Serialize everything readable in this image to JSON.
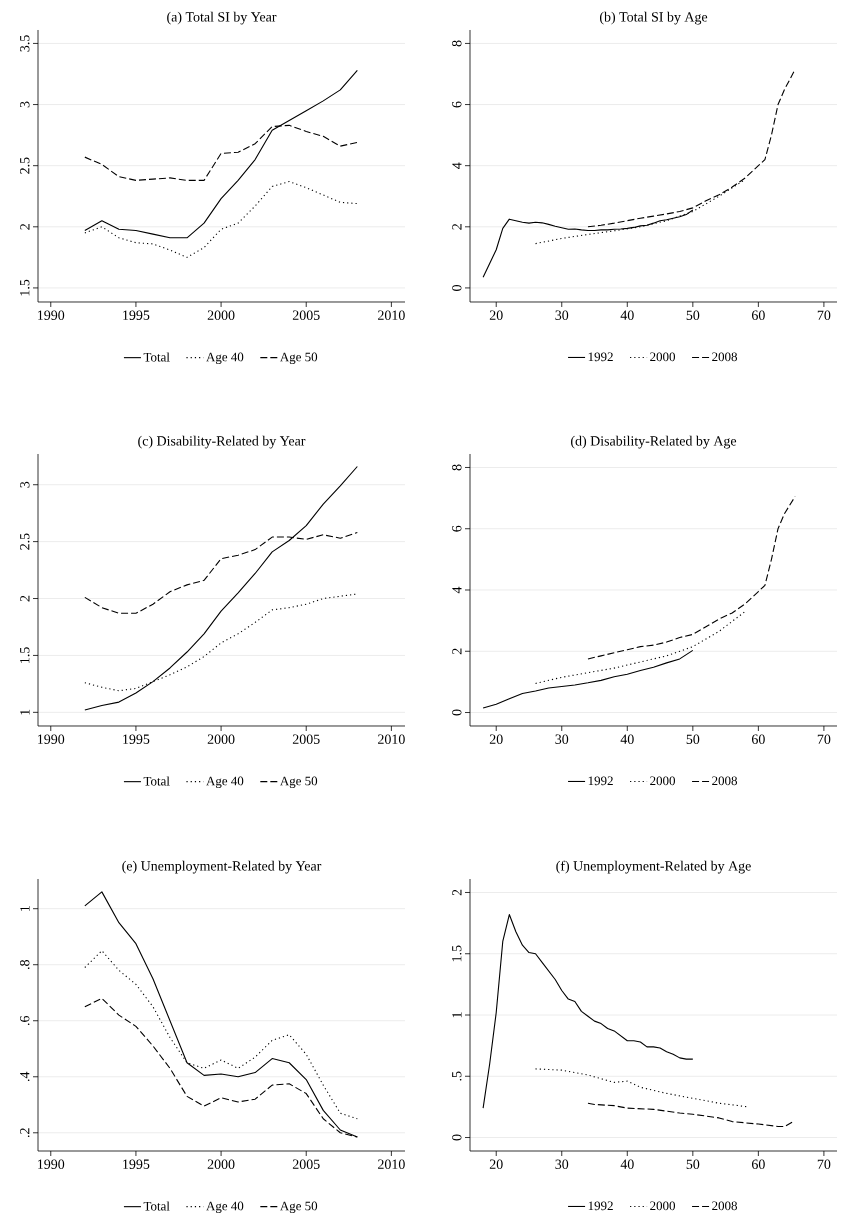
{
  "chart_data": [
    {
      "type": "line",
      "title": "(a) Total SI by Year",
      "xlim": [
        1989.25,
        2010.8
      ],
      "ylim": [
        1.385,
        3.61
      ],
      "xticks": [
        1990,
        1995,
        2000,
        2005,
        2010
      ],
      "yticks": [
        1.5,
        2,
        2.5,
        3,
        3.5
      ],
      "grid": "y",
      "legend": "bottom",
      "series": [
        {
          "name": "Total",
          "color": "#000000",
          "line_style": "solid",
          "x": [
            1992,
            1993,
            1994,
            1995,
            1996,
            1997,
            1998,
            1999,
            2000,
            2001,
            2002,
            2003,
            2004,
            2005,
            2006,
            2007,
            2008
          ],
          "values": [
            1.97,
            2.05,
            1.98,
            1.97,
            1.94,
            1.91,
            1.91,
            2.03,
            2.23,
            2.38,
            2.55,
            2.79,
            2.87,
            2.95,
            3.03,
            3.12,
            3.28
          ]
        },
        {
          "name": "Age 40",
          "color": "#000000",
          "line_style": "dotted",
          "x": [
            1992,
            1993,
            1994,
            1995,
            1996,
            1997,
            1998,
            1999,
            2000,
            2001,
            2002,
            2003,
            2004,
            2005,
            2006,
            2007,
            2008
          ],
          "values": [
            1.95,
            2.0,
            1.91,
            1.87,
            1.86,
            1.81,
            1.75,
            1.83,
            1.98,
            2.03,
            2.17,
            2.33,
            2.37,
            2.32,
            2.26,
            2.2,
            2.19
          ]
        },
        {
          "name": "Age 50",
          "color": "#000000",
          "line_style": "dashed",
          "x": [
            1992,
            1993,
            1994,
            1995,
            1996,
            1997,
            1998,
            1999,
            2000,
            2001,
            2002,
            2003,
            2004,
            2005,
            2006,
            2007,
            2008
          ],
          "values": [
            2.57,
            2.51,
            2.41,
            2.38,
            2.39,
            2.4,
            2.38,
            2.38,
            2.6,
            2.61,
            2.68,
            2.82,
            2.83,
            2.78,
            2.74,
            2.66,
            2.69
          ]
        }
      ]
    },
    {
      "type": "line",
      "title": "(b) Total SI by Age",
      "xlim": [
        16,
        72
      ],
      "ylim": [
        -0.46,
        8.44
      ],
      "xticks": [
        20,
        30,
        40,
        50,
        60,
        70
      ],
      "yticks": [
        0,
        2,
        4,
        6,
        8
      ],
      "grid": "y",
      "legend": "bottom",
      "series": [
        {
          "name": "1992",
          "color": "#000000",
          "line_style": "solid",
          "x": [
            18,
            19,
            20,
            21,
            22,
            23,
            24,
            25,
            26,
            27,
            28,
            29,
            30,
            31,
            32,
            33,
            34,
            35,
            36,
            37,
            38,
            39,
            40,
            41,
            42,
            43,
            44,
            45,
            46,
            47,
            48,
            49,
            50
          ],
          "values": [
            0.35,
            0.8,
            1.25,
            1.95,
            2.25,
            2.2,
            2.15,
            2.12,
            2.15,
            2.13,
            2.08,
            2.02,
            1.97,
            1.92,
            1.93,
            1.9,
            1.88,
            1.88,
            1.9,
            1.9,
            1.92,
            1.93,
            1.95,
            1.98,
            2.03,
            2.05,
            2.12,
            2.2,
            2.23,
            2.28,
            2.33,
            2.4,
            2.55
          ]
        },
        {
          "name": "2000",
          "color": "#000000",
          "line_style": "dotted",
          "x": [
            26,
            30,
            34,
            38,
            42,
            46,
            50,
            54,
            58
          ],
          "values": [
            1.45,
            1.62,
            1.75,
            1.87,
            2.0,
            2.2,
            2.5,
            3.0,
            3.55
          ]
        },
        {
          "name": "2008",
          "color": "#000000",
          "line_style": "dashed",
          "x": [
            34,
            36,
            38,
            40,
            42,
            44,
            46,
            48,
            50,
            52,
            54,
            56,
            58,
            60,
            61,
            62,
            63,
            64,
            65,
            65.6
          ],
          "values": [
            2.0,
            2.05,
            2.12,
            2.2,
            2.28,
            2.35,
            2.42,
            2.5,
            2.62,
            2.85,
            3.05,
            3.3,
            3.6,
            4.0,
            4.2,
            5.0,
            6.0,
            6.5,
            6.9,
            7.15
          ]
        }
      ]
    },
    {
      "type": "line",
      "title": "(c) Disability-Related by Year",
      "xlim": [
        1989.25,
        2010.8
      ],
      "ylim": [
        0.88,
        3.27
      ],
      "xticks": [
        1990,
        1995,
        2000,
        2005,
        2010
      ],
      "yticks": [
        1,
        1.5,
        2,
        2.5,
        3
      ],
      "grid": "y",
      "legend": "bottom",
      "series": [
        {
          "name": "Total",
          "color": "#000000",
          "line_style": "solid",
          "x": [
            1992,
            1993,
            1994,
            1995,
            1996,
            1997,
            1998,
            1999,
            2000,
            2001,
            2002,
            2003,
            2004,
            2005,
            2006,
            2007,
            2008
          ],
          "values": [
            1.02,
            1.06,
            1.09,
            1.17,
            1.27,
            1.39,
            1.53,
            1.69,
            1.89,
            2.05,
            2.22,
            2.41,
            2.51,
            2.64,
            2.83,
            2.99,
            3.16
          ]
        },
        {
          "name": "Age 40",
          "color": "#000000",
          "line_style": "dotted",
          "x": [
            1992,
            1993,
            1994,
            1995,
            1996,
            1997,
            1998,
            1999,
            2000,
            2001,
            2002,
            2003,
            2004,
            2005,
            2006,
            2007,
            2008
          ],
          "values": [
            1.26,
            1.22,
            1.19,
            1.21,
            1.27,
            1.33,
            1.4,
            1.49,
            1.61,
            1.69,
            1.79,
            1.9,
            1.92,
            1.95,
            2.0,
            2.02,
            2.04
          ]
        },
        {
          "name": "Age 50",
          "color": "#000000",
          "line_style": "dashed",
          "x": [
            1992,
            1993,
            1994,
            1995,
            1996,
            1997,
            1998,
            1999,
            2000,
            2001,
            2002,
            2003,
            2004,
            2005,
            2006,
            2007,
            2008
          ],
          "values": [
            2.01,
            1.92,
            1.87,
            1.87,
            1.95,
            2.06,
            2.12,
            2.16,
            2.35,
            2.38,
            2.43,
            2.54,
            2.54,
            2.52,
            2.56,
            2.53,
            2.58
          ]
        }
      ]
    },
    {
      "type": "line",
      "title": "(d) Disability-Related by Age",
      "xlim": [
        16,
        72
      ],
      "ylim": [
        -0.44,
        8.44
      ],
      "xticks": [
        20,
        30,
        40,
        50,
        60,
        70
      ],
      "yticks": [
        0,
        2,
        4,
        6,
        8
      ],
      "grid": "y",
      "legend": "bottom",
      "series": [
        {
          "name": "1992",
          "color": "#000000",
          "line_style": "solid",
          "x": [
            18,
            20,
            22,
            24,
            26,
            28,
            30,
            32,
            34,
            36,
            38,
            40,
            42,
            44,
            46,
            48,
            50
          ],
          "values": [
            0.15,
            0.27,
            0.45,
            0.62,
            0.7,
            0.8,
            0.85,
            0.9,
            0.97,
            1.05,
            1.17,
            1.25,
            1.37,
            1.48,
            1.62,
            1.75,
            2.03
          ]
        },
        {
          "name": "2000",
          "color": "#000000",
          "line_style": "dotted",
          "x": [
            26,
            30,
            34,
            38,
            42,
            46,
            50,
            54,
            58
          ],
          "values": [
            0.95,
            1.15,
            1.3,
            1.45,
            1.65,
            1.85,
            2.15,
            2.65,
            3.3
          ]
        },
        {
          "name": "2008",
          "color": "#000000",
          "line_style": "dashed",
          "x": [
            34,
            36,
            38,
            40,
            42,
            44,
            46,
            48,
            50,
            52,
            54,
            56,
            58,
            60,
            61,
            62,
            63,
            64,
            65.6
          ],
          "values": [
            1.75,
            1.85,
            1.95,
            2.05,
            2.15,
            2.2,
            2.3,
            2.45,
            2.55,
            2.8,
            3.05,
            3.25,
            3.55,
            3.95,
            4.15,
            5.0,
            6.0,
            6.5,
            7.05
          ]
        }
      ]
    },
    {
      "type": "line",
      "title": "(e) Unemployment-Related by Year",
      "xlim": [
        1989.25,
        2010.8
      ],
      "ylim": [
        0.135,
        1.106
      ],
      "xticks": [
        1990,
        1995,
        2000,
        2005,
        2010
      ],
      "yticks": [
        {
          "value": 0.2,
          "label": ".2"
        },
        {
          "value": 0.4,
          "label": ".4"
        },
        {
          "value": 0.6,
          "label": ".6"
        },
        {
          "value": 0.8,
          "label": ".8"
        },
        1
      ],
      "grid": "y",
      "legend": "bottom",
      "series": [
        {
          "name": "Total",
          "color": "#000000",
          "line_style": "solid",
          "x": [
            1992,
            1993,
            1994,
            1995,
            1996,
            1997,
            1998,
            1999,
            2000,
            2001,
            2002,
            2003,
            2004,
            2005,
            2006,
            2007,
            2008
          ],
          "values": [
            1.01,
            1.06,
            0.95,
            0.875,
            0.75,
            0.6,
            0.45,
            0.405,
            0.41,
            0.4,
            0.415,
            0.465,
            0.45,
            0.39,
            0.28,
            0.21,
            0.185
          ]
        },
        {
          "name": "Age 40",
          "color": "#000000",
          "line_style": "dotted",
          "x": [
            1992,
            1993,
            1994,
            1995,
            1996,
            1997,
            1998,
            1999,
            2000,
            2001,
            2002,
            2003,
            2004,
            2005,
            2006,
            2007,
            2008
          ],
          "values": [
            0.79,
            0.85,
            0.78,
            0.73,
            0.65,
            0.54,
            0.45,
            0.43,
            0.46,
            0.43,
            0.47,
            0.53,
            0.55,
            0.48,
            0.37,
            0.27,
            0.25
          ]
        },
        {
          "name": "Age 50",
          "color": "#000000",
          "line_style": "dashed",
          "x": [
            1992,
            1993,
            1994,
            1995,
            1996,
            1997,
            1998,
            1999,
            2000,
            2001,
            2002,
            2003,
            2004,
            2005,
            2006,
            2007,
            2008
          ],
          "values": [
            0.65,
            0.68,
            0.62,
            0.58,
            0.51,
            0.43,
            0.33,
            0.295,
            0.325,
            0.31,
            0.32,
            0.37,
            0.375,
            0.34,
            0.25,
            0.2,
            0.185
          ]
        }
      ]
    },
    {
      "type": "line",
      "title": "(f) Unemployment-Related by Age",
      "xlim": [
        16,
        72
      ],
      "ylim": [
        -0.11,
        2.11
      ],
      "xticks": [
        20,
        30,
        40,
        50,
        60,
        70
      ],
      "yticks": [
        0,
        {
          "value": 0.5,
          "label": ".5"
        },
        1,
        1.5,
        2
      ],
      "grid": "y",
      "legend": "bottom",
      "series": [
        {
          "name": "1992",
          "color": "#000000",
          "line_style": "solid",
          "x": [
            18,
            19,
            20,
            21,
            22,
            23,
            24,
            25,
            26,
            27,
            28,
            29,
            30,
            31,
            32,
            33,
            34,
            35,
            36,
            37,
            38,
            39,
            40,
            41,
            42,
            43,
            44,
            45,
            46,
            47,
            48,
            49,
            50
          ],
          "values": [
            0.24,
            0.6,
            1.02,
            1.6,
            1.82,
            1.68,
            1.57,
            1.51,
            1.5,
            1.43,
            1.36,
            1.29,
            1.2,
            1.13,
            1.11,
            1.03,
            0.99,
            0.95,
            0.93,
            0.89,
            0.87,
            0.83,
            0.79,
            0.79,
            0.78,
            0.74,
            0.74,
            0.73,
            0.7,
            0.68,
            0.65,
            0.64,
            0.64
          ]
        },
        {
          "name": "2000",
          "color": "#000000",
          "line_style": "dotted",
          "x": [
            26,
            30,
            34,
            38,
            40,
            42,
            46,
            50,
            54,
            58.5
          ],
          "values": [
            0.56,
            0.55,
            0.51,
            0.45,
            0.46,
            0.41,
            0.36,
            0.32,
            0.28,
            0.25
          ]
        },
        {
          "name": "2008",
          "color": "#000000",
          "line_style": "dashed",
          "x": [
            34,
            35,
            38,
            40,
            44,
            48,
            50,
            54,
            56,
            60,
            63,
            64,
            65.3
          ],
          "values": [
            0.28,
            0.27,
            0.26,
            0.24,
            0.23,
            0.2,
            0.19,
            0.16,
            0.13,
            0.11,
            0.09,
            0.09,
            0.13
          ]
        }
      ]
    }
  ]
}
